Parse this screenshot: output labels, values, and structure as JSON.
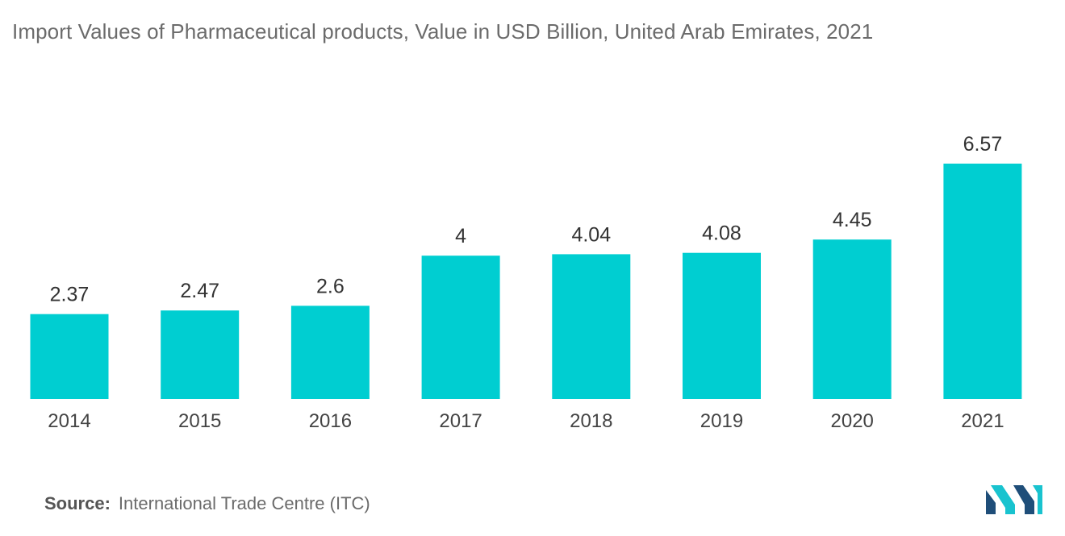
{
  "title": "Import Values of Pharmaceutical products, Value in USD Billion, United Arab Emirates, 2021",
  "source": {
    "label": "Source:",
    "text": "International Trade Centre (ITC)"
  },
  "logo": {
    "icon": "mordor-intelligence-logo-icon",
    "color_dark": "#1f4e79",
    "color_light": "#19c3cf"
  },
  "chart_data": {
    "type": "bar",
    "categories": [
      "2014",
      "2015",
      "2016",
      "2017",
      "2018",
      "2019",
      "2020",
      "2021"
    ],
    "values": [
      2.37,
      2.47,
      2.6,
      4,
      4.04,
      4.08,
      4.45,
      6.57
    ],
    "value_labels": [
      "2.37",
      "2.47",
      "2.6",
      "4",
      "4.04",
      "4.08",
      "4.45",
      "6.57"
    ],
    "title": "Import Values of Pharmaceutical products, Value in USD Billion, United Arab Emirates, 2021",
    "xlabel": "",
    "ylabel": "",
    "ylim": [
      0,
      6.57
    ],
    "grid": false,
    "legend": "none",
    "bar_color": "#00ced1"
  }
}
